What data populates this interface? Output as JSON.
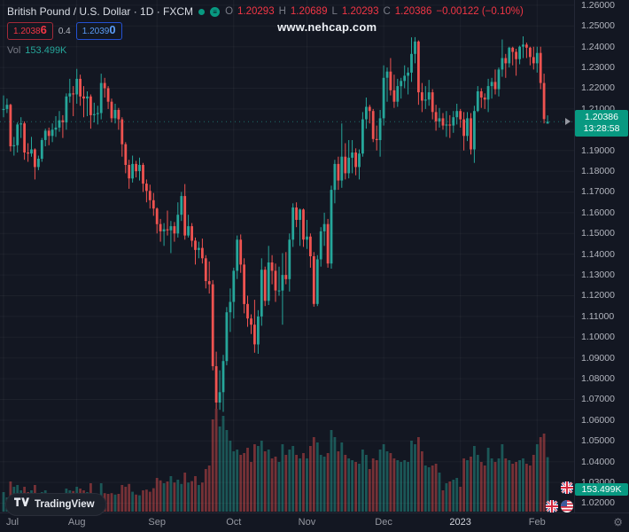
{
  "header": {
    "symbol_line": "British Pound / U.S. Dollar · 1D · FXCM",
    "ohlc": {
      "open_label": "O",
      "open": "1.20293",
      "high_label": "H",
      "high": "1.20689",
      "low_label": "L",
      "low": "1.20293",
      "close_label": "C",
      "close": "1.20386",
      "change": "−0.00122 (−0.10%)"
    },
    "sell": {
      "base": "1.2038",
      "big": "6"
    },
    "spread": "0.4",
    "buy": {
      "base": "1.2039",
      "big": "0"
    },
    "volume_row": {
      "label": "Vol",
      "value": "153.499K"
    }
  },
  "watermark": "www.nehcap.com",
  "price_axis": {
    "ticks": [
      "1.26000",
      "1.25000",
      "1.24000",
      "1.23000",
      "1.22000",
      "1.21000",
      "1.20000",
      "1.19000",
      "1.18000",
      "1.17000",
      "1.16000",
      "1.15000",
      "1.14000",
      "1.13000",
      "1.12000",
      "1.11000",
      "1.10000",
      "1.09000",
      "1.08000",
      "1.07000",
      "1.06000",
      "1.05000",
      "1.04000",
      "1.03000",
      "1.02000"
    ],
    "last_price": "1.20386",
    "countdown": "13:28:58",
    "volume_tag": "153.499K"
  },
  "time_axis": {
    "ticks": [
      {
        "label": "Jul",
        "index": 0
      },
      {
        "label": "Aug",
        "index": 21
      },
      {
        "label": "Sep",
        "index": 44
      },
      {
        "label": "Oct",
        "index": 66
      },
      {
        "label": "Nov",
        "index": 87
      },
      {
        "label": "Dec",
        "index": 109
      },
      {
        "label": "2023",
        "index": 131,
        "emphasis": true
      },
      {
        "label": "Feb",
        "index": 153
      }
    ]
  },
  "footer": {
    "brand": "TradingView"
  },
  "colors": {
    "background": "#131722",
    "up": "#26a69a",
    "down": "#ef5350",
    "up_dim": "rgba(38,166,154,0.45)",
    "down_dim": "rgba(239,83,80,0.45)",
    "accent_green": "#089981",
    "sell_red": "#f23645",
    "buy_blue": "#2962ff",
    "axis_text": "#b2b5be",
    "muted_text": "#787b86",
    "grid": "rgba(255,255,255,0.045)"
  },
  "chart_data": {
    "type": "candlestick",
    "title": "British Pound / U.S. Dollar",
    "timeframe": "1D",
    "feed": "FXCM",
    "x_range_labels": [
      "Jul",
      "Aug",
      "Sep",
      "Oct",
      "Nov",
      "Dec",
      "2023",
      "Feb"
    ],
    "y_domain": [
      1.0155,
      1.2625
    ],
    "y_tick_min": 1.02,
    "y_tick_max": 1.26,
    "y_tick_step": 0.01,
    "last_close": 1.20386,
    "last_volume_k": 153.499,
    "volume_unit": "K",
    "columns": [
      "open",
      "high",
      "low",
      "close",
      "volume_k"
    ],
    "candles": [
      [
        1.2095,
        1.2165,
        1.206,
        1.21,
        55
      ],
      [
        1.21,
        1.215,
        1.208,
        1.212,
        40
      ],
      [
        1.212,
        1.2125,
        1.1895,
        1.192,
        85
      ],
      [
        1.192,
        1.1965,
        1.1875,
        1.1925,
        70
      ],
      [
        1.1925,
        1.2035,
        1.189,
        1.2025,
        75
      ],
      [
        1.2025,
        1.206,
        1.196,
        1.203,
        60
      ],
      [
        1.203,
        1.204,
        1.1855,
        1.189,
        70
      ],
      [
        1.189,
        1.1935,
        1.1845,
        1.1885,
        55
      ],
      [
        1.1885,
        1.1965,
        1.187,
        1.1905,
        60
      ],
      [
        1.1905,
        1.191,
        1.176,
        1.182,
        75
      ],
      [
        1.182,
        1.1875,
        1.1805,
        1.186,
        50
      ],
      [
        1.186,
        1.196,
        1.1845,
        1.195,
        55
      ],
      [
        1.195,
        1.2005,
        1.192,
        1.1995,
        60
      ],
      [
        1.1995,
        1.201,
        1.1925,
        1.197,
        50
      ],
      [
        1.197,
        1.203,
        1.194,
        1.2,
        48
      ],
      [
        1.2,
        1.2065,
        1.1965,
        1.201,
        45
      ],
      [
        1.201,
        1.209,
        1.199,
        1.2045,
        44
      ],
      [
        1.2045,
        1.207,
        1.196,
        1.2035,
        50
      ],
      [
        1.2035,
        1.2175,
        1.2,
        1.216,
        65
      ],
      [
        1.216,
        1.2245,
        1.213,
        1.2175,
        60
      ],
      [
        1.2175,
        1.221,
        1.2065,
        1.217,
        58
      ],
      [
        1.217,
        1.2293,
        1.2125,
        1.2245,
        70
      ],
      [
        1.2245,
        1.2265,
        1.2115,
        1.216,
        65
      ],
      [
        1.216,
        1.221,
        1.206,
        1.215,
        60
      ],
      [
        1.215,
        1.2185,
        1.2065,
        1.216,
        55
      ],
      [
        1.216,
        1.217,
        1.2005,
        1.207,
        80
      ],
      [
        1.207,
        1.213,
        1.2035,
        1.2075,
        45
      ],
      [
        1.2075,
        1.2115,
        1.2025,
        1.208,
        44
      ],
      [
        1.208,
        1.227,
        1.205,
        1.2225,
        80
      ],
      [
        1.2225,
        1.225,
        1.2155,
        1.22,
        52
      ],
      [
        1.22,
        1.221,
        1.21,
        1.2135,
        50
      ],
      [
        1.2135,
        1.215,
        1.2035,
        1.2055,
        52
      ],
      [
        1.2055,
        1.2125,
        1.203,
        1.2095,
        48
      ],
      [
        1.2095,
        1.2105,
        1.2,
        1.205,
        50
      ],
      [
        1.205,
        1.206,
        1.187,
        1.193,
        75
      ],
      [
        1.193,
        1.194,
        1.179,
        1.183,
        70
      ],
      [
        1.183,
        1.1855,
        1.1715,
        1.1765,
        78
      ],
      [
        1.1765,
        1.1875,
        1.1745,
        1.1835,
        56
      ],
      [
        1.1835,
        1.185,
        1.177,
        1.18,
        48
      ],
      [
        1.18,
        1.1865,
        1.1755,
        1.183,
        46
      ],
      [
        1.183,
        1.184,
        1.17,
        1.174,
        60
      ],
      [
        1.174,
        1.176,
        1.165,
        1.1705,
        62
      ],
      [
        1.1705,
        1.1735,
        1.162,
        1.166,
        56
      ],
      [
        1.166,
        1.1695,
        1.1585,
        1.162,
        66
      ],
      [
        1.162,
        1.1625,
        1.15,
        1.1545,
        95
      ],
      [
        1.1545,
        1.157,
        1.146,
        1.151,
        88
      ],
      [
        1.151,
        1.155,
        1.144,
        1.152,
        80
      ],
      [
        1.152,
        1.161,
        1.149,
        1.1515,
        85
      ],
      [
        1.1515,
        1.156,
        1.1405,
        1.1535,
        100
      ],
      [
        1.1535,
        1.1555,
        1.146,
        1.15,
        82
      ],
      [
        1.15,
        1.165,
        1.148,
        1.159,
        90
      ],
      [
        1.159,
        1.17,
        1.156,
        1.168,
        78
      ],
      [
        1.168,
        1.1738,
        1.147,
        1.149,
        110
      ],
      [
        1.149,
        1.159,
        1.148,
        1.1535,
        82
      ],
      [
        1.1535,
        1.155,
        1.1435,
        1.1465,
        86
      ],
      [
        1.1465,
        1.148,
        1.135,
        1.142,
        100
      ],
      [
        1.142,
        1.146,
        1.138,
        1.143,
        75
      ],
      [
        1.143,
        1.1475,
        1.1355,
        1.138,
        82
      ],
      [
        1.138,
        1.1395,
        1.1235,
        1.127,
        120
      ],
      [
        1.127,
        1.1365,
        1.121,
        1.1255,
        130
      ],
      [
        1.1255,
        1.1275,
        1.084,
        1.086,
        260
      ],
      [
        1.086,
        1.093,
        1.0655,
        1.0685,
        290
      ],
      [
        1.0685,
        1.084,
        1.065,
        1.0735,
        240
      ],
      [
        1.0735,
        1.0915,
        1.064,
        1.0885,
        270
      ],
      [
        1.0885,
        1.1145,
        1.0865,
        1.112,
        230
      ],
      [
        1.112,
        1.1235,
        1.1025,
        1.117,
        200
      ],
      [
        1.117,
        1.1335,
        1.109,
        1.132,
        170
      ],
      [
        1.132,
        1.149,
        1.128,
        1.147,
        175
      ],
      [
        1.147,
        1.1495,
        1.131,
        1.135,
        160
      ],
      [
        1.135,
        1.138,
        1.1115,
        1.116,
        165
      ],
      [
        1.116,
        1.12,
        1.105,
        1.109,
        180
      ],
      [
        1.109,
        1.111,
        1.1015,
        1.106,
        140
      ],
      [
        1.106,
        1.118,
        1.0925,
        1.0965,
        190
      ],
      [
        1.0965,
        1.113,
        1.092,
        1.11,
        185
      ],
      [
        1.11,
        1.138,
        1.1055,
        1.1325,
        200
      ],
      [
        1.1325,
        1.134,
        1.115,
        1.1175,
        170
      ],
      [
        1.1175,
        1.144,
        1.1155,
        1.136,
        175
      ],
      [
        1.136,
        1.1395,
        1.1255,
        1.132,
        150
      ],
      [
        1.132,
        1.1355,
        1.117,
        1.1225,
        155
      ],
      [
        1.1225,
        1.134,
        1.12,
        1.1225,
        140
      ],
      [
        1.1225,
        1.1405,
        1.106,
        1.13,
        190
      ],
      [
        1.13,
        1.141,
        1.1255,
        1.128,
        160
      ],
      [
        1.128,
        1.15,
        1.122,
        1.147,
        175
      ],
      [
        1.147,
        1.1645,
        1.1435,
        1.1625,
        185
      ],
      [
        1.1625,
        1.165,
        1.153,
        1.1565,
        160
      ],
      [
        1.1565,
        1.162,
        1.144,
        1.1615,
        150
      ],
      [
        1.1615,
        1.162,
        1.1435,
        1.147,
        165
      ],
      [
        1.147,
        1.1565,
        1.1425,
        1.1485,
        150
      ],
      [
        1.1485,
        1.15,
        1.1335,
        1.139,
        185
      ],
      [
        1.139,
        1.141,
        1.1147,
        1.116,
        210
      ],
      [
        1.116,
        1.1395,
        1.115,
        1.1375,
        195
      ],
      [
        1.1375,
        1.153,
        1.134,
        1.151,
        160
      ],
      [
        1.151,
        1.16,
        1.144,
        1.1545,
        155
      ],
      [
        1.1545,
        1.157,
        1.1335,
        1.1355,
        165
      ],
      [
        1.1355,
        1.173,
        1.133,
        1.171,
        230
      ],
      [
        1.171,
        1.1855,
        1.1645,
        1.1835,
        210
      ],
      [
        1.1835,
        1.187,
        1.171,
        1.1755,
        170
      ],
      [
        1.1755,
        1.203,
        1.172,
        1.187,
        195
      ],
      [
        1.187,
        1.1935,
        1.176,
        1.179,
        160
      ],
      [
        1.179,
        1.195,
        1.1765,
        1.1865,
        150
      ],
      [
        1.1865,
        1.195,
        1.179,
        1.189,
        145
      ],
      [
        1.189,
        1.191,
        1.178,
        1.182,
        140
      ],
      [
        1.182,
        1.1905,
        1.176,
        1.1885,
        135
      ],
      [
        1.1885,
        1.2085,
        1.187,
        1.205,
        175
      ],
      [
        1.205,
        1.2155,
        1.2005,
        1.211,
        160
      ],
      [
        1.211,
        1.212,
        1.203,
        1.209,
        120
      ],
      [
        1.209,
        1.21,
        1.194,
        1.1955,
        150
      ],
      [
        1.1955,
        1.202,
        1.19,
        1.195,
        145
      ],
      [
        1.195,
        1.2095,
        1.187,
        1.2055,
        175
      ],
      [
        1.2055,
        1.231,
        1.202,
        1.225,
        190
      ],
      [
        1.225,
        1.23,
        1.2135,
        1.228,
        170
      ],
      [
        1.228,
        1.2345,
        1.2165,
        1.219,
        165
      ],
      [
        1.219,
        1.2265,
        1.2105,
        1.2135,
        150
      ],
      [
        1.2135,
        1.2245,
        1.211,
        1.221,
        145
      ],
      [
        1.221,
        1.225,
        1.215,
        1.2235,
        140
      ],
      [
        1.2235,
        1.231,
        1.22,
        1.226,
        145
      ],
      [
        1.226,
        1.23,
        1.217,
        1.2275,
        140
      ],
      [
        1.2275,
        1.2445,
        1.223,
        1.2365,
        200
      ],
      [
        1.2365,
        1.2446,
        1.232,
        1.2425,
        190
      ],
      [
        1.2425,
        1.243,
        1.212,
        1.218,
        210
      ],
      [
        1.218,
        1.2225,
        1.2085,
        1.214,
        170
      ],
      [
        1.214,
        1.221,
        1.21,
        1.2145,
        130
      ],
      [
        1.2145,
        1.224,
        1.2115,
        1.218,
        125
      ],
      [
        1.218,
        1.2195,
        1.205,
        1.2085,
        130
      ],
      [
        1.2085,
        1.212,
        1.1995,
        1.204,
        135
      ],
      [
        1.204,
        1.2105,
        1.201,
        1.2055,
        110
      ],
      [
        1.2055,
        1.208,
        1.2,
        1.202,
        60
      ],
      [
        1.202,
        1.209,
        1.1965,
        1.2025,
        80
      ],
      [
        1.2025,
        1.207,
        1.196,
        1.202,
        85
      ],
      [
        1.202,
        1.209,
        1.1985,
        1.206,
        90
      ],
      [
        1.206,
        1.2125,
        1.2025,
        1.209,
        95
      ],
      [
        1.209,
        1.21,
        1.201,
        1.205,
        70
      ],
      [
        1.205,
        1.2085,
        1.19,
        1.197,
        150
      ],
      [
        1.197,
        1.2085,
        1.1945,
        1.2055,
        145
      ],
      [
        1.2055,
        1.208,
        1.188,
        1.1905,
        155
      ],
      [
        1.1905,
        1.2115,
        1.184,
        1.209,
        185
      ],
      [
        1.209,
        1.221,
        1.2085,
        1.2185,
        160
      ],
      [
        1.2185,
        1.22,
        1.2105,
        1.2155,
        140
      ],
      [
        1.2155,
        1.2175,
        1.21,
        1.2145,
        130
      ],
      [
        1.2145,
        1.2245,
        1.2085,
        1.221,
        180
      ],
      [
        1.221,
        1.225,
        1.215,
        1.223,
        150
      ],
      [
        1.223,
        1.229,
        1.217,
        1.2195,
        140
      ],
      [
        1.2195,
        1.23,
        1.216,
        1.229,
        150
      ],
      [
        1.229,
        1.2435,
        1.2255,
        1.2345,
        190
      ],
      [
        1.2345,
        1.2365,
        1.225,
        1.232,
        150
      ],
      [
        1.232,
        1.24,
        1.23,
        1.2395,
        145
      ],
      [
        1.2395,
        1.24,
        1.231,
        1.2375,
        135
      ],
      [
        1.2375,
        1.239,
        1.226,
        1.234,
        140
      ],
      [
        1.234,
        1.2405,
        1.2315,
        1.24,
        145
      ],
      [
        1.24,
        1.245,
        1.2345,
        1.241,
        150
      ],
      [
        1.241,
        1.242,
        1.2345,
        1.2395,
        135
      ],
      [
        1.2395,
        1.24,
        1.231,
        1.235,
        130
      ],
      [
        1.235,
        1.24,
        1.229,
        1.232,
        160
      ],
      [
        1.232,
        1.24,
        1.2275,
        1.237,
        190
      ],
      [
        1.237,
        1.24,
        1.2195,
        1.2225,
        210
      ],
      [
        1.2225,
        1.227,
        1.203,
        1.2051,
        220
      ],
      [
        1.20293,
        1.20689,
        1.20293,
        1.20386,
        153.499
      ]
    ]
  }
}
